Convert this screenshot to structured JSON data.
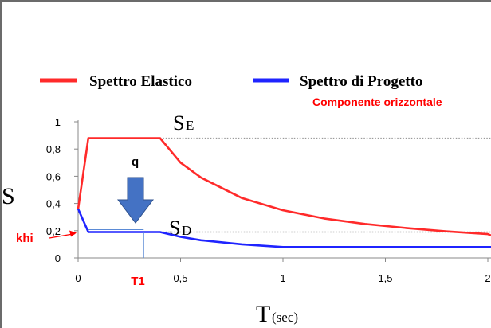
{
  "chart_data": {
    "type": "line",
    "xlabel": "T",
    "xlabel_sub": "(sec)",
    "ylabel": "S",
    "xlim": [
      0,
      2
    ],
    "ylim": [
      0,
      1
    ],
    "xticks": [
      "0",
      "0,5",
      "1",
      "1,5",
      "2"
    ],
    "yticks": [
      "0",
      "0,2",
      "0,4",
      "0,6",
      "0,8",
      "1"
    ],
    "legend": {
      "placement": "top",
      "subtitle": "Componente orizzontale"
    },
    "series": [
      {
        "name": "Spettro Elastico",
        "color": "#ff2a2a",
        "x": [
          0,
          0.05,
          0.4,
          0.5,
          0.6,
          0.8,
          1.0,
          1.2,
          1.4,
          1.6,
          1.8,
          2.0,
          2.1
        ],
        "y": [
          0.36,
          0.88,
          0.88,
          0.7,
          0.59,
          0.44,
          0.35,
          0.29,
          0.25,
          0.22,
          0.195,
          0.175,
          0.165
        ]
      },
      {
        "name": "Spettro di Progetto",
        "color": "#1f24ff",
        "x": [
          0,
          0.05,
          0.4,
          0.5,
          0.6,
          0.8,
          1.0,
          1.2,
          1.5,
          2.0,
          2.1
        ],
        "y": [
          0.36,
          0.19,
          0.19,
          0.155,
          0.13,
          0.1,
          0.08,
          0.08,
          0.08,
          0.08,
          0.08
        ]
      }
    ],
    "reference_lines": [
      {
        "y": 0.88,
        "label_main": "S",
        "label_sub": "E"
      },
      {
        "y": 0.19,
        "label_main": "S",
        "label_sub": "D"
      }
    ],
    "annotations": {
      "arrow_label": "q",
      "arrow_color": "#4472c4",
      "khi_label": "khi",
      "khi_y": 0.19,
      "t1_label": "T1",
      "t1_x": 0.32,
      "annotation_color": "#ff0000"
    }
  }
}
